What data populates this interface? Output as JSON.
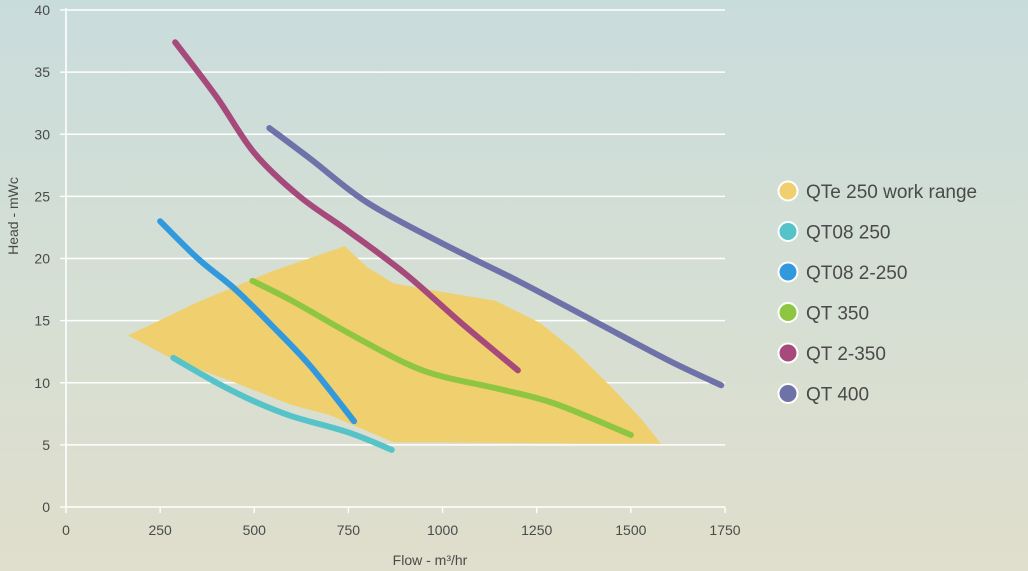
{
  "chart_data": {
    "type": "line",
    "xlabel": "Flow - m³/hr",
    "ylabel": "Head - mWc",
    "xlim": [
      0,
      1750
    ],
    "ylim": [
      0,
      40
    ],
    "x_ticks": [
      0,
      250,
      500,
      750,
      1000,
      1250,
      1500,
      1750
    ],
    "y_ticks": [
      0,
      5,
      10,
      15,
      20,
      25,
      30,
      35,
      40
    ],
    "grid": "horizontal",
    "legend_position": "right",
    "work_range": {
      "name": "QTe 250 work range",
      "color": "#f0cf6e",
      "points": [
        {
          "x": 165,
          "y": 13.8
        },
        {
          "x": 350,
          "y": 16.5
        },
        {
          "x": 550,
          "y": 19.0
        },
        {
          "x": 740,
          "y": 21.0
        },
        {
          "x": 800,
          "y": 19.3
        },
        {
          "x": 870,
          "y": 18.0
        },
        {
          "x": 1000,
          "y": 17.3
        },
        {
          "x": 1140,
          "y": 16.6
        },
        {
          "x": 1260,
          "y": 14.8
        },
        {
          "x": 1350,
          "y": 12.6
        },
        {
          "x": 1450,
          "y": 9.6
        },
        {
          "x": 1530,
          "y": 7.0
        },
        {
          "x": 1580,
          "y": 5.1
        },
        {
          "x": 1400,
          "y": 5.1
        },
        {
          "x": 1000,
          "y": 5.2
        },
        {
          "x": 870,
          "y": 5.2
        },
        {
          "x": 700,
          "y": 7.4
        },
        {
          "x": 600,
          "y": 8.2
        },
        {
          "x": 450,
          "y": 10.0
        },
        {
          "x": 290,
          "y": 11.8
        }
      ]
    },
    "series": [
      {
        "name": "QT08 250",
        "color": "#55c3c8",
        "points": [
          {
            "x": 285,
            "y": 12.0
          },
          {
            "x": 400,
            "y": 10.0
          },
          {
            "x": 500,
            "y": 8.5
          },
          {
            "x": 600,
            "y": 7.3
          },
          {
            "x": 750,
            "y": 6.0
          },
          {
            "x": 865,
            "y": 4.6
          }
        ]
      },
      {
        "name": "QT08 2-250",
        "color": "#3399dd",
        "points": [
          {
            "x": 250,
            "y": 23.0
          },
          {
            "x": 350,
            "y": 20.0
          },
          {
            "x": 450,
            "y": 17.5
          },
          {
            "x": 550,
            "y": 14.5
          },
          {
            "x": 650,
            "y": 11.3
          },
          {
            "x": 765,
            "y": 6.9
          }
        ]
      },
      {
        "name": "QT 350",
        "color": "#8fc641",
        "points": [
          {
            "x": 495,
            "y": 18.2
          },
          {
            "x": 600,
            "y": 16.6
          },
          {
            "x": 750,
            "y": 14.0
          },
          {
            "x": 900,
            "y": 11.6
          },
          {
            "x": 1000,
            "y": 10.5
          },
          {
            "x": 1150,
            "y": 9.5
          },
          {
            "x": 1300,
            "y": 8.3
          },
          {
            "x": 1500,
            "y": 5.8
          }
        ]
      },
      {
        "name": "QT 2-350",
        "color": "#a54a7a",
        "points": [
          {
            "x": 290,
            "y": 37.4
          },
          {
            "x": 400,
            "y": 33.0
          },
          {
            "x": 500,
            "y": 28.5
          },
          {
            "x": 620,
            "y": 25.0
          },
          {
            "x": 750,
            "y": 22.2
          },
          {
            "x": 900,
            "y": 18.8
          },
          {
            "x": 1050,
            "y": 14.8
          },
          {
            "x": 1200,
            "y": 11.0
          }
        ]
      },
      {
        "name": "QT 400",
        "color": "#6e72a8",
        "points": [
          {
            "x": 540,
            "y": 30.5
          },
          {
            "x": 650,
            "y": 28.0
          },
          {
            "x": 800,
            "y": 24.5
          },
          {
            "x": 1000,
            "y": 21.2
          },
          {
            "x": 1200,
            "y": 18.2
          },
          {
            "x": 1400,
            "y": 15.0
          },
          {
            "x": 1600,
            "y": 11.8
          },
          {
            "x": 1740,
            "y": 9.8
          }
        ]
      }
    ]
  }
}
